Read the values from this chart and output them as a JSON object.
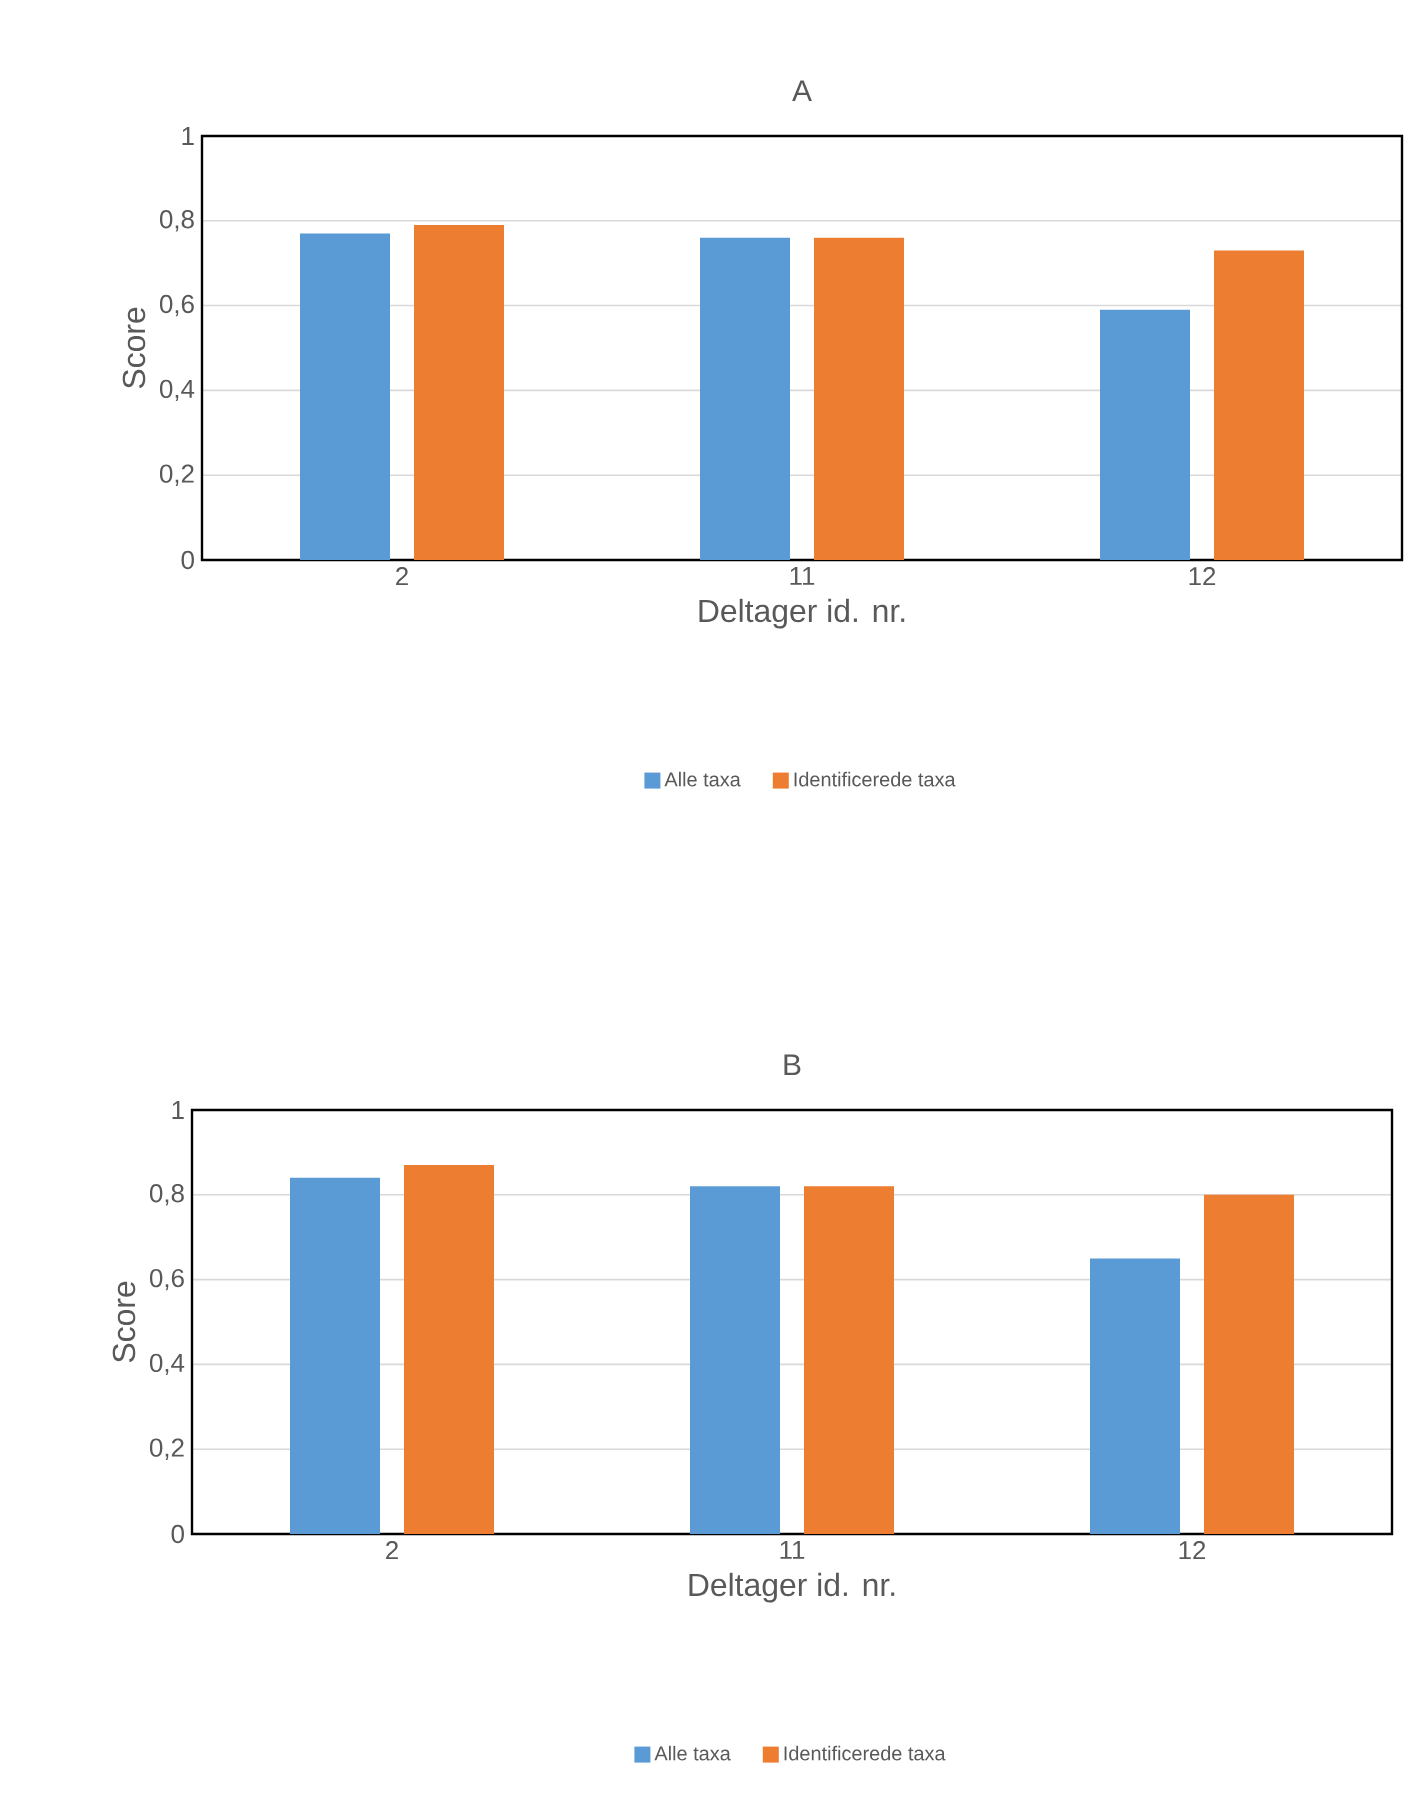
{
  "chart_data": [
    {
      "type": "bar",
      "title": "A",
      "xlabel": "Deltager id. nr.",
      "ylabel": "Score",
      "categories": [
        "2",
        "11",
        "12"
      ],
      "series": [
        {
          "name": "Alle taxa",
          "color": "#5b9bd5",
          "values": [
            0.77,
            0.76,
            0.59
          ]
        },
        {
          "name": "Identificerede taxa",
          "color": "#ed7d31",
          "values": [
            0.79,
            0.76,
            0.73
          ]
        }
      ],
      "ylim": [
        0,
        1
      ],
      "yticks": [
        0,
        {
          "value": 0.2,
          "label": "0,2"
        },
        {
          "value": 0.4,
          "label": "0,4"
        },
        {
          "value": 0.6,
          "label": "0,6"
        },
        {
          "value": 0.8,
          "label": "0,8"
        },
        1
      ],
      "grid": "y",
      "legend": "bottom"
    },
    {
      "type": "bar",
      "title": "B",
      "xlabel": "Deltager id. nr.",
      "ylabel": "Score",
      "categories": [
        "2",
        "11",
        "12"
      ],
      "series": [
        {
          "name": "Alle taxa",
          "color": "#5b9bd5",
          "values": [
            0.84,
            0.82,
            0.65
          ]
        },
        {
          "name": "Identificerede taxa",
          "color": "#ed7d31",
          "values": [
            0.87,
            0.82,
            0.8
          ]
        }
      ],
      "ylim": [
        0,
        1
      ],
      "yticks": [
        0,
        {
          "value": 0.2,
          "label": "0,2"
        },
        {
          "value": 0.4,
          "label": "0,4"
        },
        {
          "value": 0.6,
          "label": "0,6"
        },
        {
          "value": 0.8,
          "label": "0,8"
        },
        1
      ],
      "grid": "y",
      "legend": "bottom"
    }
  ]
}
